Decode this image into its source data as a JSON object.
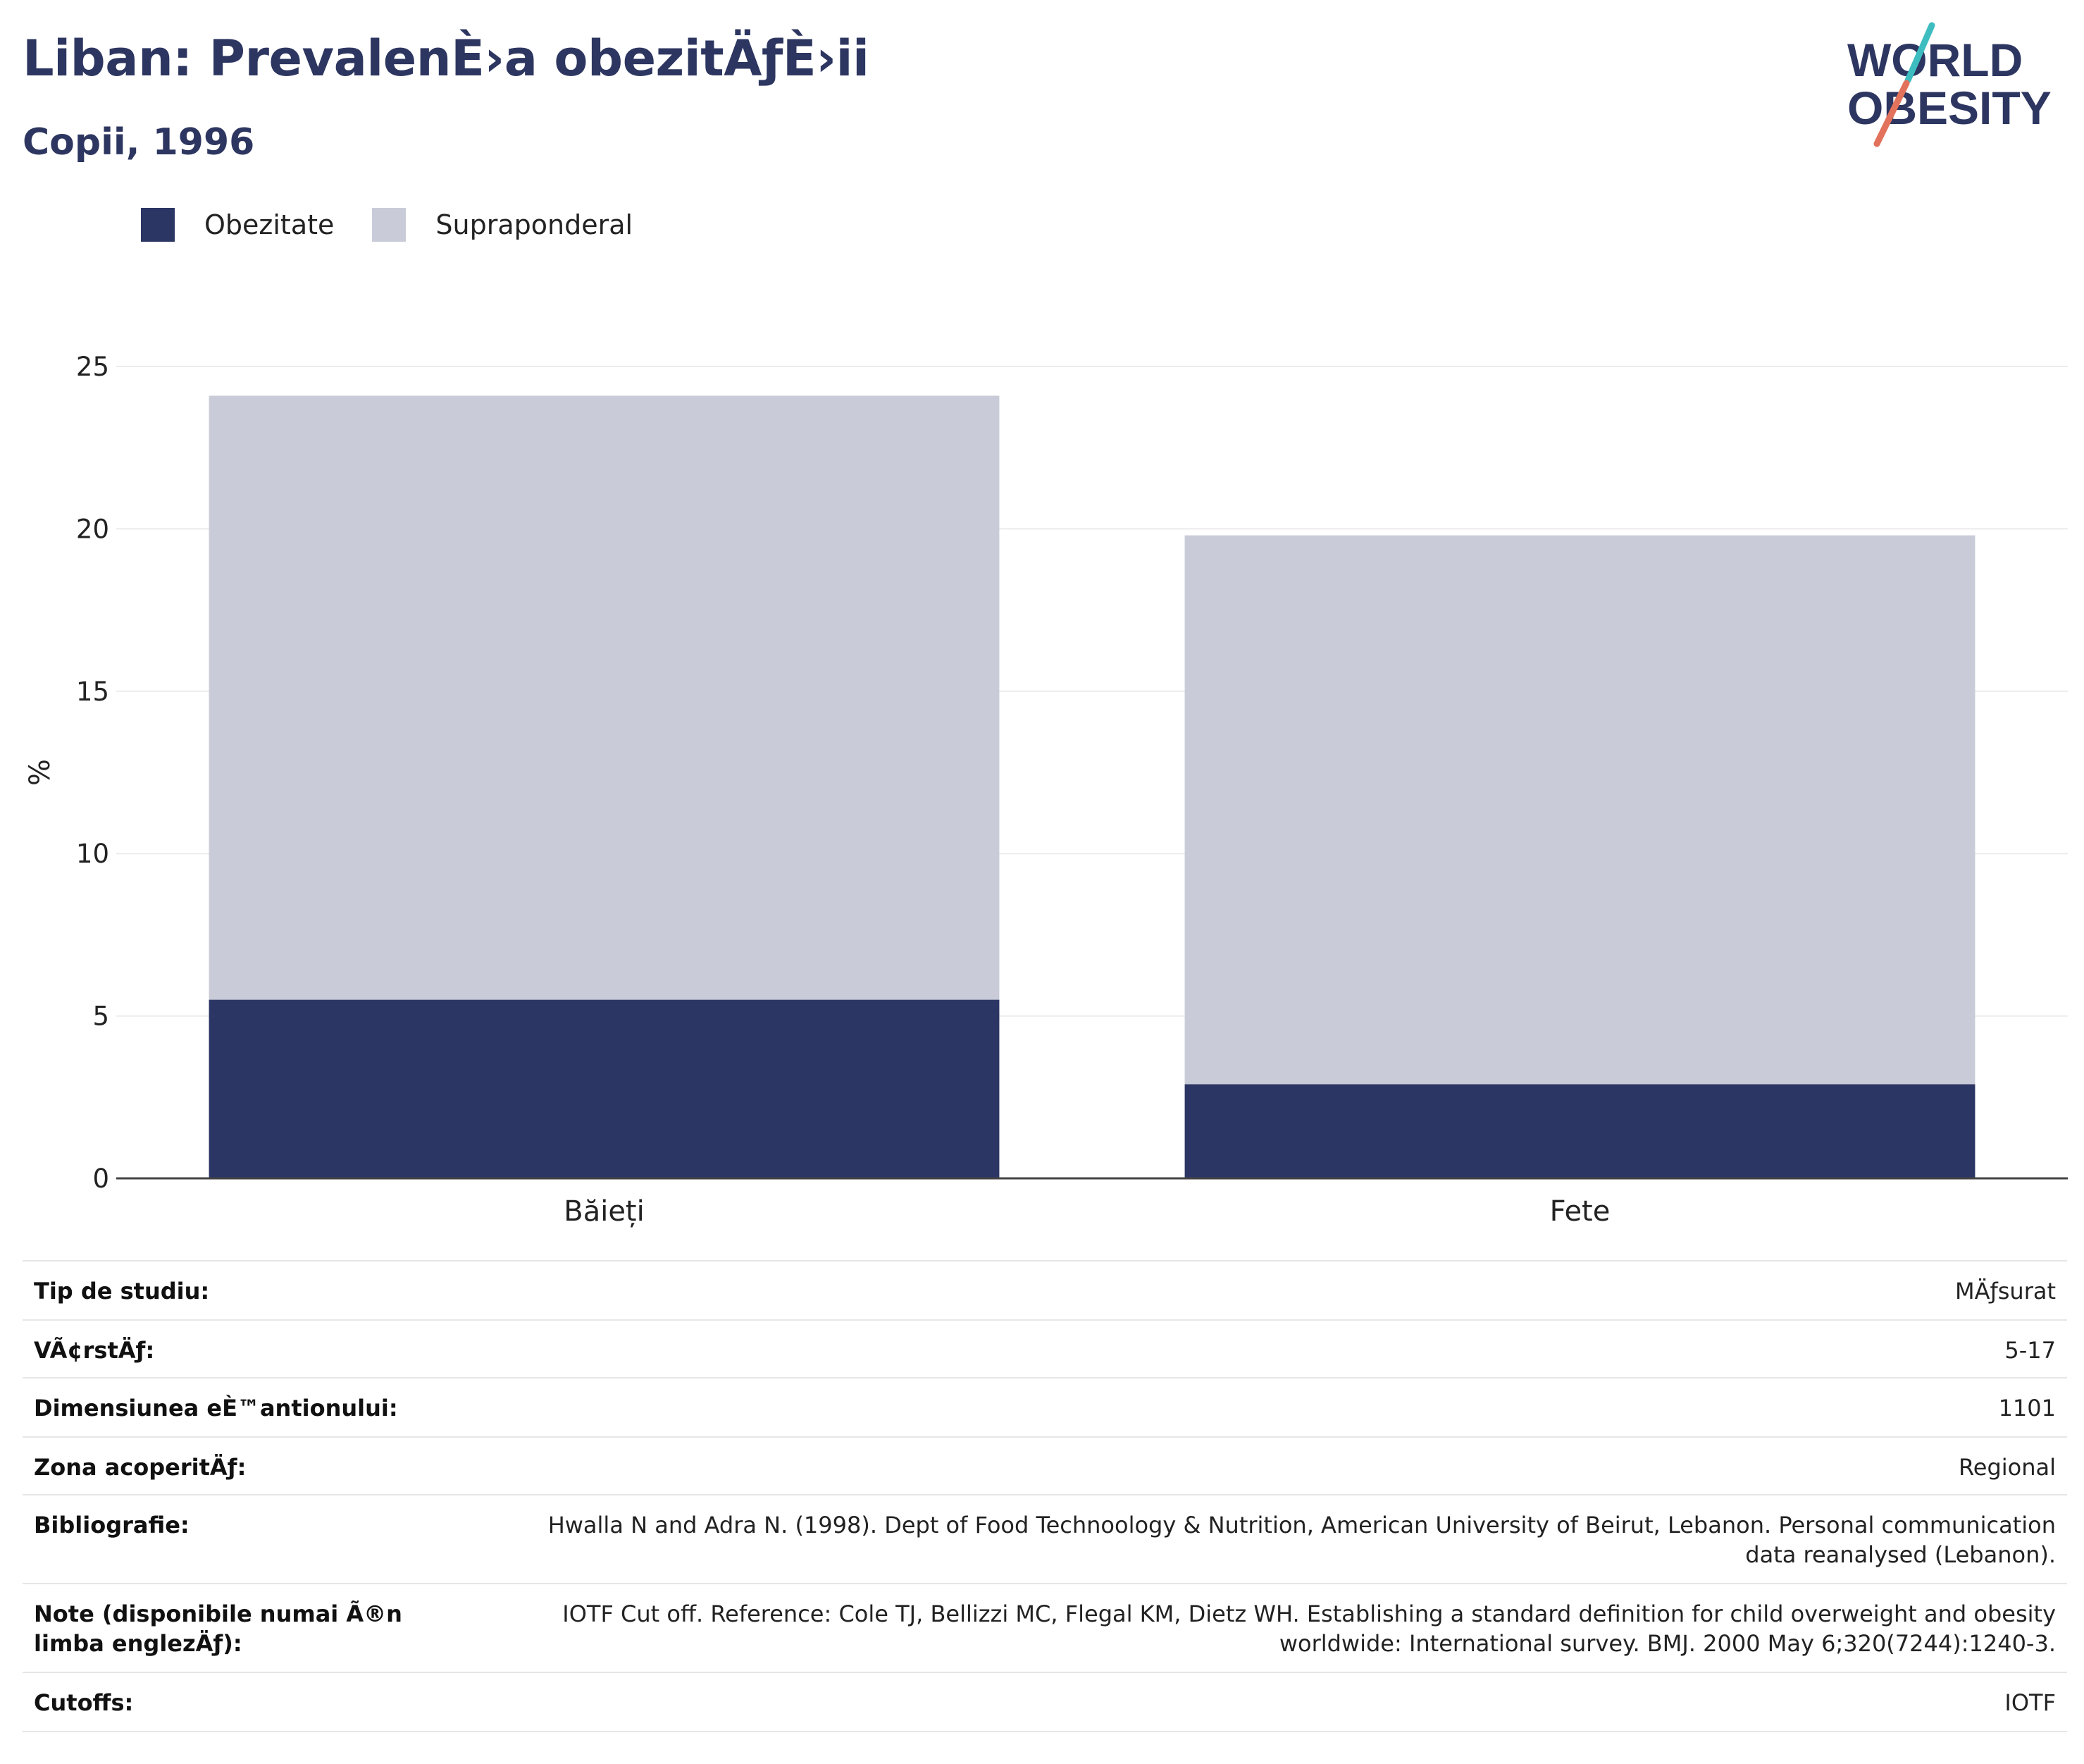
{
  "header": {
    "title": "Liban: PrevalenÈ›a obezitÄƒÈ›ii",
    "subtitle": "Copii, 1996"
  },
  "logo": {
    "line1": "WORLD",
    "line2": "OBESITY"
  },
  "colors": {
    "obese": "#2b3664",
    "overweight": "#c9ccd8",
    "title": "#2d3660",
    "logo_teal": "#3dbdc0",
    "logo_coral": "#e2725b"
  },
  "chart_data": {
    "type": "bar",
    "stacked": true,
    "categories": [
      "Băieți",
      "Fete"
    ],
    "series": [
      {
        "name": "Obezitate",
        "values": [
          5.5,
          2.9
        ]
      },
      {
        "name": "Supraponderal",
        "values": [
          18.6,
          16.9
        ]
      }
    ],
    "ylabel": "%",
    "ylim": [
      0,
      25
    ],
    "yticks": [
      0,
      5,
      10,
      15,
      20,
      25
    ],
    "grid": true,
    "legend": "top-left"
  },
  "info": [
    {
      "key": "Tip de studiu:",
      "value": "MÄƒsurat"
    },
    {
      "key": "VÃ¢rstÄƒ:",
      "value": "5-17"
    },
    {
      "key": "Dimensiunea eÈ™antionului:",
      "value": "1101"
    },
    {
      "key": "Zona acoperitÄƒ:",
      "value": "Regional"
    },
    {
      "key": "Bibliografie:",
      "value": "Hwalla N and Adra N. (1998). Dept of Food Technoology & Nutrition, American University of Beirut, Lebanon. Personal communication data reanalysed (Lebanon)."
    },
    {
      "key": "Note (disponibile numai Ã®n limba englezÄƒ):",
      "value": "IOTF Cut off. Reference: Cole TJ, Bellizzi MC, Flegal KM, Dietz WH. Establishing a standard definition for child overweight and obesity worldwide: International survey. BMJ. 2000 May 6;320(7244):1240-3."
    },
    {
      "key": "Cutoffs:",
      "value": "IOTF"
    }
  ]
}
